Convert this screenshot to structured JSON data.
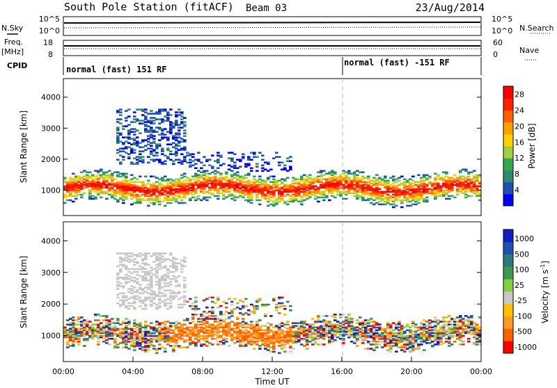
{
  "header": {
    "station": "South Pole Station (fitACF)",
    "beam": "Beam 03",
    "date": "23/Aug/2014"
  },
  "strips": {
    "nsky_label": "N.Sky",
    "nsearch_label": "N.Search",
    "freq_label_top": "Freq.",
    "freq_label_unit": "[MHz]",
    "nave_label": "Nave",
    "cpid_label": "CPID",
    "noise_ticks": [
      "10^5",
      "10^0"
    ],
    "freq_ticks": [
      "18",
      "8"
    ],
    "nave_ticks": [
      "60",
      "0"
    ],
    "cpid_segments": [
      {
        "label": "normal (fast) 151 RF",
        "start_hour": 0
      },
      {
        "label": "normal (fast) -151 RF",
        "start_hour": 16
      }
    ]
  },
  "colors": {
    "power_scale": [
      "#0000ff",
      "#2050b0",
      "#2d8a6e",
      "#35a84f",
      "#a0d040",
      "#ffd000",
      "#ffa000",
      "#ff6000",
      "#ff2000",
      "#ff0000"
    ],
    "velocity_scale": [
      "#ff0000",
      "#ff6000",
      "#ff9a20",
      "#ffc000",
      "#c8c8c8",
      "#80d040",
      "#3c9a50",
      "#2c7a80",
      "#2050b0",
      "#1020c0"
    ]
  },
  "chart_data": [
    {
      "type": "heatmap",
      "name": "power",
      "ylabel": "Slant Range [km]",
      "yticks": [
        1000,
        2000,
        3000,
        4000
      ],
      "ylim": [
        180,
        4600
      ],
      "xlim": [
        0,
        24
      ],
      "colorbar": {
        "label": "Power [dB]",
        "ticks": [
          "4",
          "8",
          "12",
          "16",
          "20",
          "24",
          "28"
        ],
        "range": [
          0,
          30
        ]
      }
    },
    {
      "type": "heatmap",
      "name": "velocity",
      "ylabel": "Slant Range [km]",
      "yticks": [
        1000,
        2000,
        3000,
        4000
      ],
      "ylim": [
        180,
        4600
      ],
      "xlim": [
        0,
        24
      ],
      "xlabel": "Time UT",
      "xticks": [
        "00:00",
        "04:00",
        "08:00",
        "12:00",
        "16:00",
        "20:00",
        "00:00"
      ],
      "colorbar": {
        "label": "Velocity [m s",
        "label_sup": "-1",
        "label_end": "]",
        "ticks": [
          "1000",
          "500",
          "100",
          "25",
          "-25",
          "-100",
          "-500",
          "-1000"
        ]
      }
    }
  ]
}
